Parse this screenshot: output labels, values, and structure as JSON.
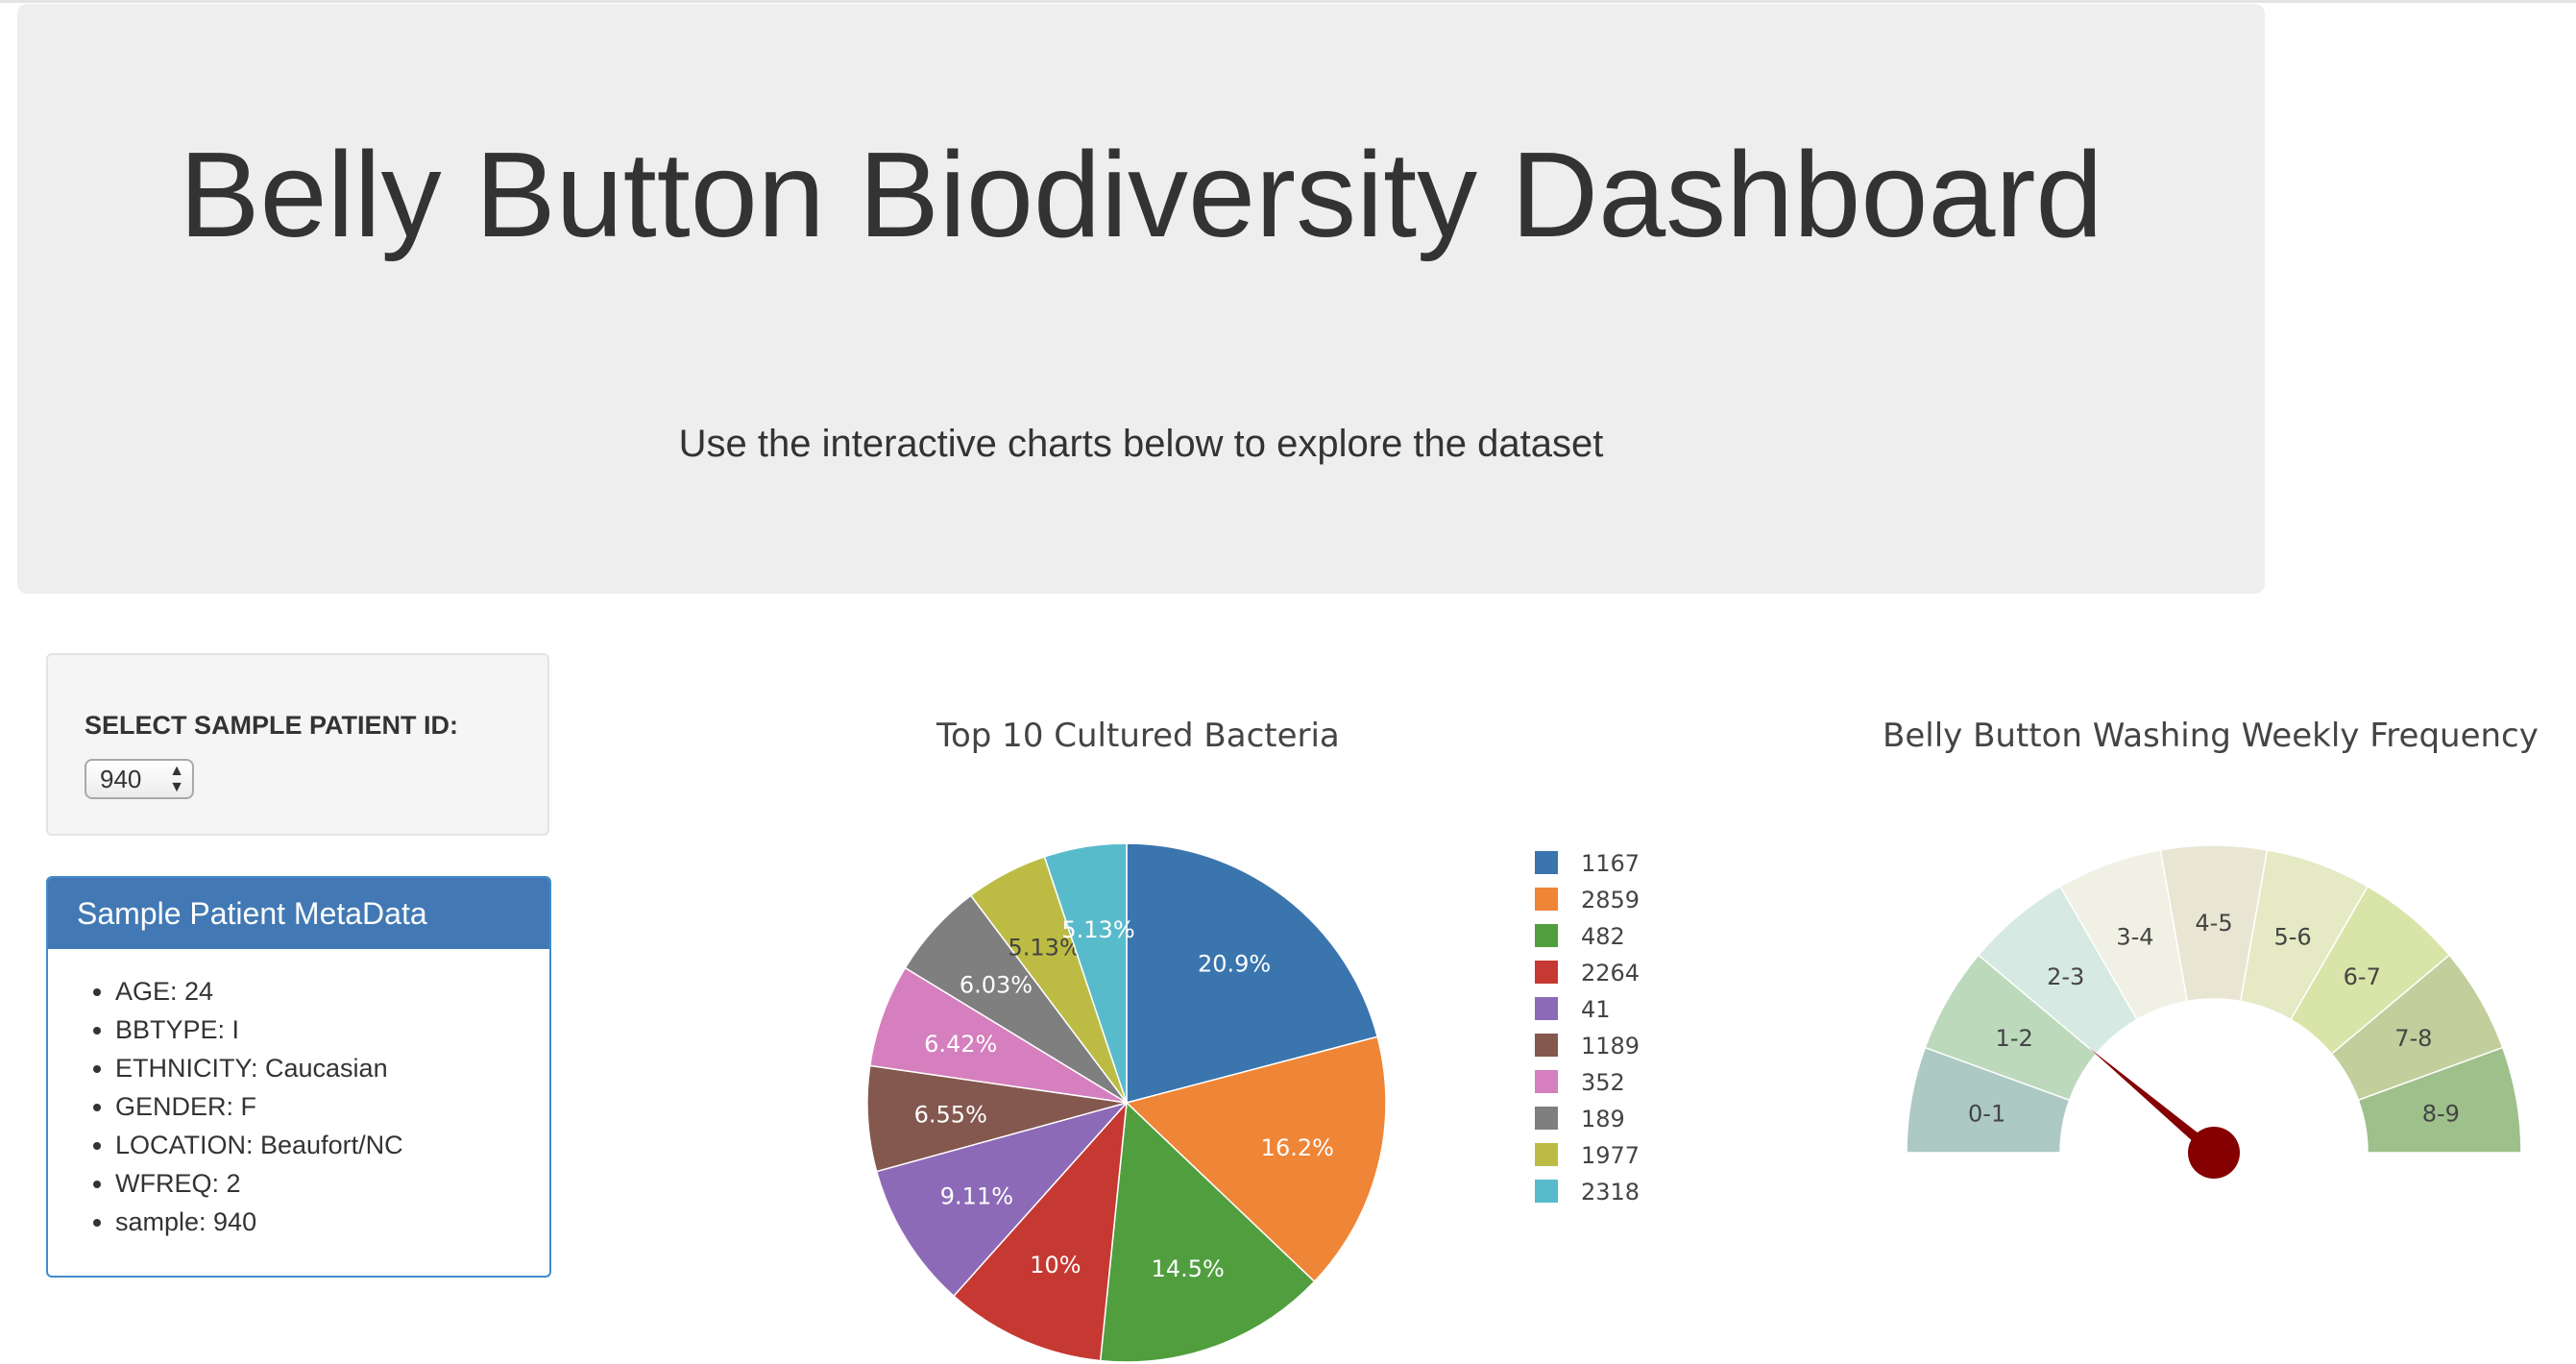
{
  "header": {
    "title": "Belly Button Biodiversity Dashboard",
    "subtitle": "Use the interactive charts below to explore the dataset"
  },
  "selector": {
    "label": "SELECT SAMPLE PATIENT ID:",
    "selected": "940"
  },
  "metadata_panel": {
    "title": "Sample Patient MetaData",
    "items": [
      "AGE: 24",
      "BBTYPE: I",
      "ETHNICITY: Caucasian",
      "GENDER: F",
      "LOCATION: Beaufort/NC",
      "WFREQ: 2",
      "sample: 940"
    ]
  },
  "chart_data": [
    {
      "type": "pie",
      "title": "Top 10 Cultured Bacteria",
      "labels": [
        "1167",
        "2859",
        "482",
        "2264",
        "41",
        "1189",
        "352",
        "189",
        "1977",
        "2318"
      ],
      "values": [
        20.9,
        16.2,
        14.5,
        10.0,
        9.11,
        6.55,
        6.42,
        6.03,
        5.13,
        5.13
      ],
      "slice_labels": [
        "20.9%",
        "16.2%",
        "14.5%",
        "10%",
        "9.11%",
        "6.55%",
        "6.42%",
        "6.03%",
        "5.13%",
        "5.13%"
      ],
      "colors": [
        "#3a75ae",
        "#ef8536",
        "#519e3e",
        "#c53932",
        "#8d6ab8",
        "#84584e",
        "#d57fbe",
        "#7f7f7f",
        "#bcbc45",
        "#58bbcc"
      ],
      "legend_position": "right"
    },
    {
      "type": "gauge",
      "title": "Belly Button Washing Weekly Frequency",
      "value": 2,
      "range": [
        0,
        9
      ],
      "sections": [
        "0-1",
        "1-2",
        "2-3",
        "3-4",
        "4-5",
        "5-6",
        "6-7",
        "7-8",
        "8-9"
      ],
      "section_colors": [
        "#adc9c3",
        "#bdd9bc",
        "#d7e9e3",
        "#f1f0e4",
        "#e8e6d3",
        "#e5e9c4",
        "#d9e4a8",
        "#c2ce9c",
        "#9ec08b"
      ],
      "needle_color": "#850000"
    }
  ]
}
